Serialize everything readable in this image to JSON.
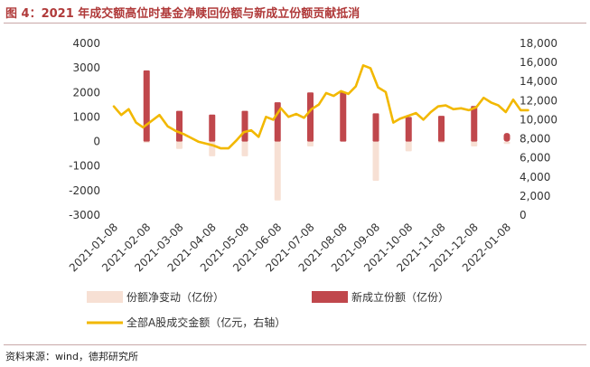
{
  "title": "图 4：2021 年成交额高位时基金净赎回份额与新成立份额贡献抵消",
  "source": "资料来源：wind，德邦研究所",
  "colors": {
    "net_change": "#f7e0d4",
    "new_issue": "#c0474c",
    "turnover": "#f2b800",
    "title": "#b03a3a"
  },
  "chart_data": {
    "type": "bar",
    "left_axis": {
      "min": -3000,
      "max": 4000,
      "ticks": [
        "4000",
        "3000",
        "2000",
        "1000",
        "0",
        "-1000",
        "-2000",
        "-3000"
      ],
      "tick_values": [
        4000,
        3000,
        2000,
        1000,
        0,
        -1000,
        -2000,
        -3000
      ]
    },
    "right_axis": {
      "min": 0,
      "max": 18000,
      "ticks": [
        "18,000",
        "16,000",
        "14,000",
        "12,000",
        "10,000",
        "8,000",
        "6,000",
        "4,000",
        "2,000",
        "0"
      ],
      "tick_values": [
        18000,
        16000,
        14000,
        12000,
        10000,
        8000,
        6000,
        4000,
        2000,
        0
      ]
    },
    "x_labels": [
      "2021-01-08",
      "2021-02-08",
      "2021-03-08",
      "2021-04-08",
      "2021-05-08",
      "2021-06-08",
      "2021-07-08",
      "2021-08-08",
      "2021-09-08",
      "2021-10-08",
      "2021-11-08",
      "2021-12-08",
      "2022-01-08"
    ],
    "months": [
      "2021-01",
      "2021-02",
      "2021-03",
      "2021-04",
      "2021-05",
      "2021-06",
      "2021-07",
      "2021-08",
      "2021-09",
      "2021-10",
      "2021-11",
      "2021-12",
      "2022-01"
    ],
    "bar_dates": [
      "2021-02-08",
      "2021-03-08",
      "2021-04-08",
      "2021-05-08",
      "2021-06-08",
      "2021-07-08",
      "2021-08-08",
      "2021-09-08",
      "2021-10-08",
      "2021-11-08",
      "2021-12-08",
      "2022-01-08"
    ],
    "series": [
      {
        "name": "份额净变动（亿份）",
        "axis": "left",
        "kind": "bar",
        "values": [
          -50,
          -300,
          -600,
          -600,
          -2400,
          -200,
          0,
          -1600,
          -400,
          -50,
          -200,
          -100
        ]
      },
      {
        "name": "新成立份额（亿份）",
        "axis": "left",
        "kind": "bar",
        "values": [
          2900,
          1250,
          1100,
          1250,
          1600,
          2000,
          2000,
          1150,
          1000,
          1050,
          1450,
          350
        ]
      },
      {
        "name": "全部A股成交金额（亿元，右轴）",
        "axis": "right",
        "kind": "line",
        "x": [
          "2021-01-08",
          "2021-01-15",
          "2021-01-22",
          "2021-01-29",
          "2021-02-05",
          "2021-02-19",
          "2021-02-26",
          "2021-03-05",
          "2021-03-12",
          "2021-03-19",
          "2021-03-26",
          "2021-04-02",
          "2021-04-09",
          "2021-04-16",
          "2021-04-23",
          "2021-04-30",
          "2021-05-07",
          "2021-05-14",
          "2021-05-21",
          "2021-05-28",
          "2021-06-04",
          "2021-06-11",
          "2021-06-18",
          "2021-06-25",
          "2021-07-02",
          "2021-07-09",
          "2021-07-16",
          "2021-07-23",
          "2021-07-30",
          "2021-08-06",
          "2021-08-13",
          "2021-08-20",
          "2021-08-27",
          "2021-09-03",
          "2021-09-10",
          "2021-09-17",
          "2021-09-24",
          "2021-09-30",
          "2021-10-15",
          "2021-10-22",
          "2021-10-29",
          "2021-11-05",
          "2021-11-12",
          "2021-11-19",
          "2021-11-26",
          "2021-12-03",
          "2021-12-10",
          "2021-12-17",
          "2021-12-24",
          "2021-12-31",
          "2022-01-07",
          "2022-01-14",
          "2022-01-21",
          "2022-01-28"
        ],
        "values": [
          11400,
          10500,
          11100,
          9700,
          9200,
          10500,
          9300,
          8800,
          8500,
          8100,
          7700,
          7500,
          7300,
          7000,
          7000,
          7800,
          8700,
          8900,
          8200,
          10300,
          10000,
          11200,
          10300,
          10600,
          10200,
          11100,
          11600,
          12800,
          12500,
          13000,
          12700,
          13500,
          15700,
          15400,
          13400,
          12900,
          9700,
          10100,
          10700,
          10000,
          10800,
          11400,
          11500,
          11100,
          11200,
          11000,
          11300,
          12300,
          11800,
          11500,
          10800,
          12100,
          11000,
          11000
        ]
      }
    ],
    "legend": {
      "position": "bottom"
    },
    "grid": false
  }
}
